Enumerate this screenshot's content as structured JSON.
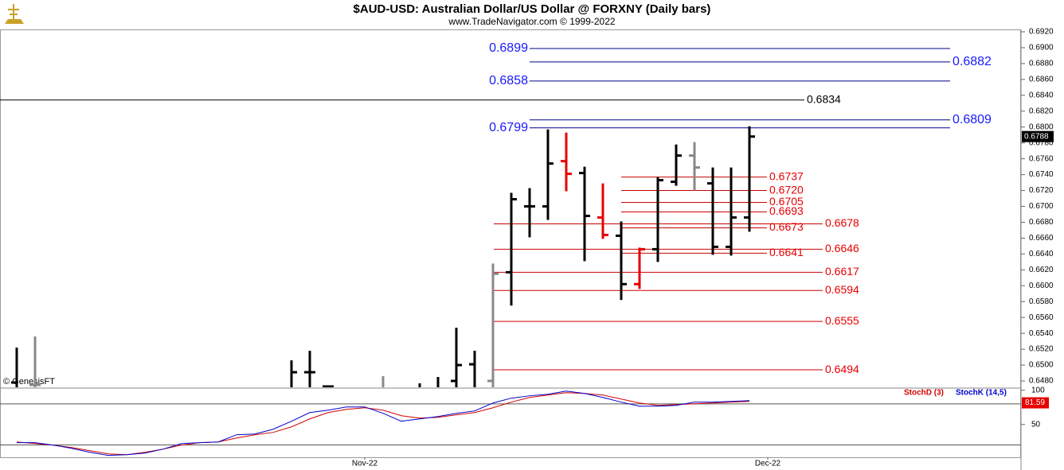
{
  "chart_data": [
    {
      "type": "ohlc",
      "title": "$AUD-USD:  Australian Dollar/US Dollar @ FORXNY  (Daily bars)",
      "subtitle": "www.TradeNavigator.com © 1999-2022",
      "credit": "© GenesisFT",
      "categories": [
        null,
        null,
        null,
        null,
        null,
        null,
        null,
        null,
        null,
        null,
        null,
        null,
        null,
        null,
        null,
        null,
        null,
        null,
        null,
        "Nov-22",
        null,
        null,
        null,
        null,
        null,
        null,
        null,
        null,
        null,
        null,
        null,
        null,
        null,
        null,
        null,
        null,
        null,
        null,
        null,
        null,
        null,
        "Dec-22"
      ],
      "open": [
        0.6478,
        0.6475,
        null,
        null,
        null,
        null,
        null,
        null,
        null,
        null,
        null,
        null,
        null,
        null,
        null,
        0.647,
        0.6491,
        0.6473,
        null,
        null,
        0.647,
        null,
        0.6466,
        0.647,
        0.648,
        0.6501,
        0.648,
        0.6617,
        0.67,
        0.67,
        0.6757,
        0.6742,
        0.6686,
        0.6663,
        0.6602,
        0.6646,
        0.6731,
        0.6764,
        0.6729,
        0.6649,
        0.6686,
        null
      ],
      "high": [
        0.6522,
        0.6536,
        null,
        null,
        null,
        null,
        null,
        null,
        null,
        null,
        null,
        null,
        null,
        null,
        null,
        0.6506,
        0.6518,
        0.6474,
        null,
        null,
        0.6486,
        null,
        0.6477,
        0.6485,
        0.6547,
        0.6518,
        0.6628,
        0.6717,
        0.6723,
        0.6797,
        0.6793,
        0.675,
        0.6729,
        0.6681,
        0.6648,
        0.6737,
        0.6778,
        0.6781,
        0.6749,
        0.6749,
        0.6801,
        null
      ],
      "low": [
        0.646,
        0.646,
        null,
        null,
        null,
        null,
        null,
        null,
        null,
        null,
        null,
        null,
        null,
        null,
        null,
        0.646,
        0.646,
        0.646,
        null,
        null,
        0.646,
        null,
        0.646,
        0.646,
        0.646,
        0.646,
        0.646,
        0.6575,
        0.6661,
        0.6683,
        0.6719,
        0.6631,
        0.6659,
        0.6582,
        0.6596,
        0.663,
        0.6726,
        0.672,
        0.6639,
        0.6638,
        0.6668,
        null
      ],
      "close": [
        0.647,
        0.6475,
        null,
        null,
        null,
        null,
        null,
        null,
        null,
        null,
        null,
        null,
        null,
        null,
        null,
        0.6491,
        0.6491,
        0.6473,
        null,
        null,
        0.647,
        null,
        0.647,
        0.6466,
        0.65,
        0.647,
        0.6615,
        0.6709,
        0.67,
        0.6754,
        0.6741,
        0.6688,
        0.6664,
        0.6602,
        0.6646,
        0.6733,
        0.6764,
        0.6749,
        0.6649,
        0.6686,
        0.6788,
        null
      ],
      "colors": [
        null,
        "#888888",
        null,
        null,
        null,
        null,
        null,
        null,
        null,
        null,
        null,
        null,
        null,
        null,
        null,
        null,
        null,
        null,
        null,
        null,
        "#888888",
        null,
        null,
        null,
        null,
        null,
        "#888888",
        null,
        null,
        null,
        "#e60000",
        null,
        "#e60000",
        null,
        "#e60000",
        null,
        null,
        "#888888",
        null,
        null,
        null,
        null
      ],
      "color": "#000000",
      "last_price": 0.6788,
      "ylim": [
        0.6472,
        0.6923
      ],
      "yticks": [
        {
          "value": 0.648,
          "label": "0.6480"
        },
        {
          "value": 0.65,
          "label": "0.6500"
        },
        {
          "value": 0.652,
          "label": "0.6520"
        },
        {
          "value": 0.654,
          "label": "0.6540"
        },
        {
          "value": 0.656,
          "label": "0.6560"
        },
        {
          "value": 0.658,
          "label": "0.6580"
        },
        {
          "value": 0.66,
          "label": "0.6600"
        },
        {
          "value": 0.662,
          "label": "0.6620"
        },
        {
          "value": 0.664,
          "label": "0.6640"
        },
        {
          "value": 0.666,
          "label": "0.6660"
        },
        {
          "value": 0.668,
          "label": "0.6680"
        },
        {
          "value": 0.67,
          "label": "0.6700"
        },
        {
          "value": 0.672,
          "label": "0.6720"
        },
        {
          "value": 0.674,
          "label": "0.6740"
        },
        {
          "value": 0.676,
          "label": "0.6760"
        },
        {
          "value": 0.678,
          "label": "0.6780"
        },
        {
          "value": 0.68,
          "label": "0.6800"
        },
        {
          "value": 0.682,
          "label": "0.6820"
        },
        {
          "value": 0.684,
          "label": "0.6840"
        },
        {
          "value": 0.686,
          "label": "0.6860"
        },
        {
          "value": 0.688,
          "label": "0.6880"
        },
        {
          "value": 0.69,
          "label": "0.6900"
        },
        {
          "value": 0.692,
          "label": "0.6920"
        }
      ],
      "levels": [
        {
          "color": "#1a1aff",
          "line_color": "#00008b",
          "values": [
            0.6899,
            0.6882,
            0.6858,
            0.6809,
            0.6799
          ]
        },
        {
          "color": "#000000",
          "line_color": "#000000",
          "values": [
            0.6834
          ]
        },
        {
          "color": "#e60000",
          "line_color": "#cc0000",
          "values": [
            0.6737,
            {
              "value": 0.672,
              "label": "0.6720"
            },
            0.6705,
            0.6693,
            0.6673,
            0.6641
          ]
        },
        {
          "color": "#e60000",
          "line_color": "#cc0000",
          "values": [
            0.6678,
            0.6646,
            0.6617,
            0.6594,
            0.6555,
            0.6494
          ]
        }
      ]
    },
    {
      "type": "line",
      "series": [
        {
          "name": "StochD (3)",
          "color": "#d40000",
          "values": [
            24.4,
            22.1,
            19.8,
            16.3,
            11.6,
            7,
            5.8,
            9.3,
            14,
            19.8,
            23.3,
            24.4,
            30.2,
            34.9,
            38.4,
            46.5,
            58.1,
            67.4,
            72,
            74.4,
            70.9,
            62.8,
            59.3,
            60.5,
            64,
            67.4,
            74.4,
            82.6,
            89.5,
            93,
            96.5,
            95.3,
            93,
            87.2,
            81.4,
            77.9,
            79.1,
            80.2,
            81.4,
            82.6,
            83.7,
            null
          ]
        },
        {
          "name": "StochK (14,5)",
          "color": "#0000cc",
          "values": [
            23.3,
            23.3,
            19.8,
            15.1,
            9.3,
            4.7,
            5.8,
            8.1,
            14,
            22.1,
            23.3,
            24.4,
            34.9,
            36,
            43,
            54.7,
            67.4,
            70.9,
            75.6,
            75.6,
            66.3,
            54.7,
            58.1,
            61.6,
            66.3,
            69.8,
            81.4,
            88.4,
            91.9,
            94.2,
            98.8,
            95.3,
            89.5,
            82.6,
            76.7,
            76.7,
            77.9,
            82.6,
            82.6,
            83.7,
            84.9,
            null
          ]
        }
      ],
      "last_value": 81.59,
      "ylim": [
        2,
        102
      ],
      "yticks": [
        50,
        100
      ],
      "guides": [
        80,
        20
      ]
    }
  ]
}
